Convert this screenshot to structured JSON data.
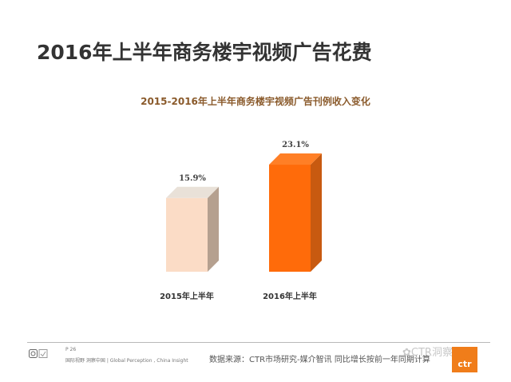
{
  "slide": {
    "title": "2016年上半年商务楼宇视频广告花费",
    "page_number": "P 26",
    "tagline": "国际视野 洞察中国 | Global Perception , China Insight",
    "source": "数据来源：CTR市场研究-媒介智讯  同比增长按前一年同期计算",
    "watermark": "CTR洞察",
    "brand_logo_text": "ctr"
  },
  "chart_data": {
    "type": "bar",
    "title": "2015-2016年上半年商务楼宇视频广告刊例收入变化",
    "categories": [
      "2015年上半年",
      "2016年上半年"
    ],
    "values": [
      15.9,
      23.1
    ],
    "data_labels": [
      "15.9%",
      "23.1%"
    ],
    "unit": "%",
    "xlabel": "",
    "ylabel": "",
    "ylim": [
      0,
      25
    ],
    "grid": false,
    "colors": {
      "front": [
        "#fbdcc6",
        "#ff6b0a"
      ],
      "side": [
        "#b5a08f",
        "#c85a10"
      ],
      "top": [
        "#e9e1d8",
        "#ff7f26"
      ]
    }
  }
}
